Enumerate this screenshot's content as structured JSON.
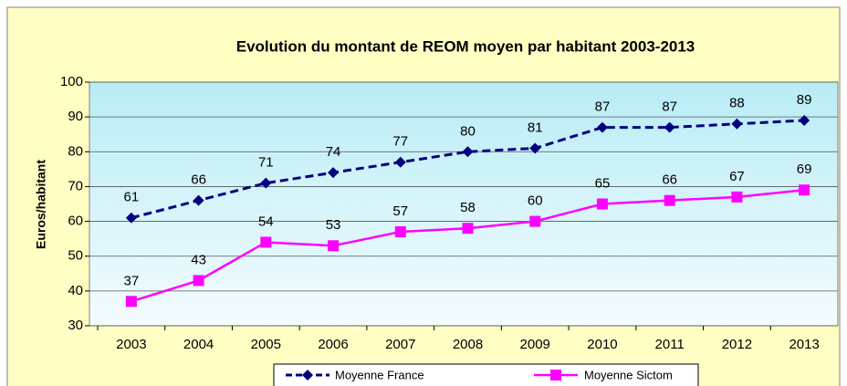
{
  "chart_data": {
    "type": "line",
    "title": "Evolution du montant de REOM moyen par habitant 2003-2013",
    "y_label": "Euros/habitant",
    "categories": [
      "2003",
      "2004",
      "2005",
      "2006",
      "2007",
      "2008",
      "2009",
      "2010",
      "2011",
      "2012",
      "2013"
    ],
    "series": [
      {
        "name": "Moyenne France",
        "color": "#000080",
        "values": [
          61,
          66,
          71,
          74,
          77,
          80,
          81,
          87,
          87,
          88,
          89
        ]
      },
      {
        "name": "Moyenne Sictom",
        "color": "#ff00ff",
        "values": [
          37,
          43,
          54,
          53,
          57,
          58,
          60,
          65,
          66,
          67,
          69
        ]
      }
    ],
    "ylim": [
      30,
      100
    ],
    "yticks": [
      30,
      40,
      50,
      60,
      70,
      80,
      90,
      100
    ],
    "grid": true,
    "legend": "bottom"
  }
}
